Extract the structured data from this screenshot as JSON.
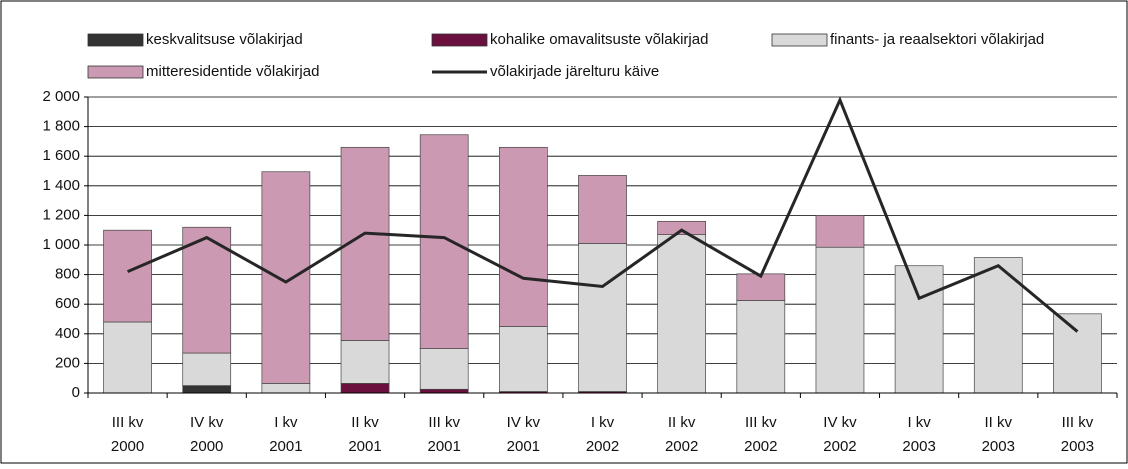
{
  "chart_data": {
    "type": "bar",
    "categories": [
      [
        "III kv",
        "2000"
      ],
      [
        "IV kv",
        "2000"
      ],
      [
        "I kv",
        "2001"
      ],
      [
        "II kv",
        "2001"
      ],
      [
        "III kv",
        "2001"
      ],
      [
        "IV kv",
        "2001"
      ],
      [
        "I kv",
        "2002"
      ],
      [
        "II kv",
        "2002"
      ],
      [
        "III kv",
        "2002"
      ],
      [
        "IV kv",
        "2002"
      ],
      [
        "I kv",
        "2003"
      ],
      [
        "II kv",
        "2003"
      ],
      [
        "III kv",
        "2003"
      ]
    ],
    "series": [
      {
        "name": "keskvalitsuse võlakirjad",
        "color": "#333333",
        "values": [
          0,
          50,
          0,
          0,
          0,
          0,
          0,
          0,
          0,
          0,
          0,
          0,
          0
        ]
      },
      {
        "name": "kohalike omavalitsuste võlakirjad",
        "color": "#6b0f3f",
        "values": [
          0,
          0,
          0,
          65,
          25,
          10,
          10,
          0,
          0,
          0,
          0,
          0,
          0
        ]
      },
      {
        "name": "finants- ja reaalsektori võlakirjad",
        "color": "#d9d9d9",
        "values": [
          480,
          220,
          65,
          290,
          275,
          440,
          1000,
          1070,
          625,
          985,
          860,
          915,
          535
        ]
      },
      {
        "name": "mitteresidentide võlakirjad",
        "color": "#cc99b3",
        "values": [
          620,
          850,
          1430,
          1305,
          1445,
          1210,
          460,
          90,
          180,
          215,
          0,
          0,
          0
        ]
      },
      {
        "name": "võlakirjade järelturu käive",
        "color": "#262626",
        "type": "line",
        "values": [
          820,
          1050,
          750,
          1080,
          1050,
          775,
          720,
          1100,
          790,
          1980,
          640,
          860,
          415
        ]
      }
    ],
    "ylim": [
      0,
      2000
    ],
    "yticks": [
      0,
      200,
      400,
      600,
      800,
      {
        "value": 1000,
        "label": "1 000"
      },
      {
        "value": 1200,
        "label": "1 200"
      },
      {
        "value": 1400,
        "label": "1 400"
      },
      {
        "value": 1600,
        "label": "1 600"
      },
      {
        "value": 1800,
        "label": "1 800"
      },
      {
        "value": 2000,
        "label": "2 000"
      }
    ],
    "grid": true
  }
}
